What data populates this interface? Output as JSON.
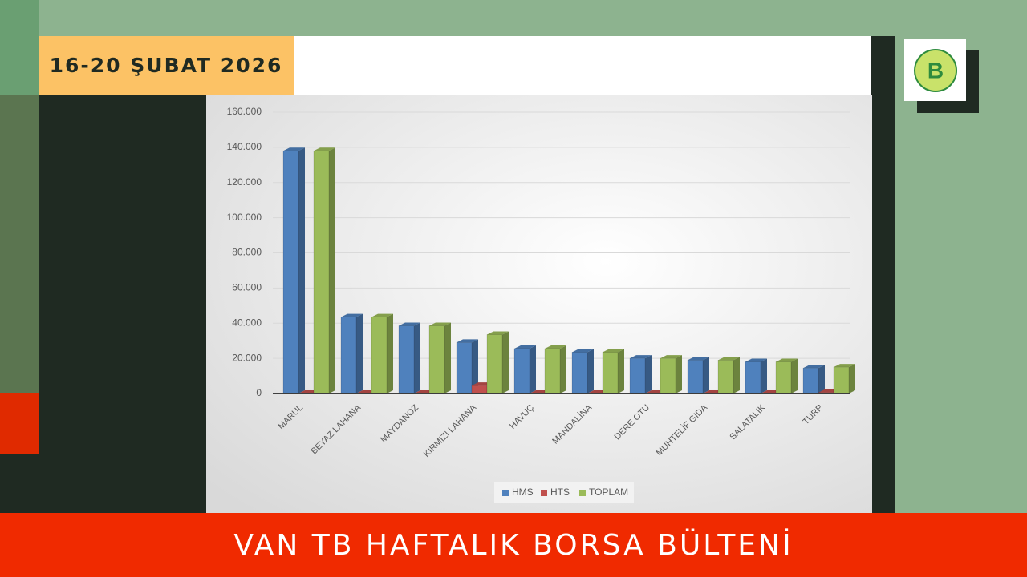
{
  "header": {
    "date": "16-20 ŞUBAT 2026"
  },
  "footer": {
    "title": "VAN TB HAFTALIK BORSA BÜLTENİ"
  },
  "chart_data": {
    "type": "bar",
    "categories": [
      "MARUL",
      "BEYAZ LAHANA",
      "MAYDANOZ",
      "KIRMIZI LAHANA",
      "HAVUÇ",
      "MANDALİNA",
      "DERE OTU",
      "MUHTELİF GIDA",
      "SALATALIK",
      "TURP"
    ],
    "series": [
      {
        "name": "HMS",
        "color": "#4f81bd",
        "values": [
          138000,
          43500,
          38500,
          29000,
          25500,
          23500,
          20000,
          19000,
          18000,
          14500
        ]
      },
      {
        "name": "HTS",
        "color": "#c0504d",
        "values": [
          0,
          0,
          0,
          4500,
          0,
          0,
          0,
          0,
          0,
          500
        ]
      },
      {
        "name": "TOPLAM",
        "color": "#9bbb59",
        "values": [
          138000,
          43500,
          38500,
          33500,
          25500,
          23500,
          20000,
          19000,
          18000,
          15000
        ]
      }
    ],
    "ylim": [
      0,
      160000
    ],
    "yticks": [
      0,
      {
        "value": 20000,
        "label": "20.000"
      },
      {
        "value": 40000,
        "label": "40.000"
      },
      {
        "value": 60000,
        "label": "60.000"
      },
      {
        "value": 80000,
        "label": "80.000"
      },
      {
        "value": 100000,
        "label": "100.000"
      },
      {
        "value": 120000,
        "label": "120.000"
      },
      {
        "value": 140000,
        "label": "140.000"
      },
      {
        "value": 160000,
        "label": "160.000"
      }
    ],
    "grid": true,
    "legend": "bottom"
  }
}
